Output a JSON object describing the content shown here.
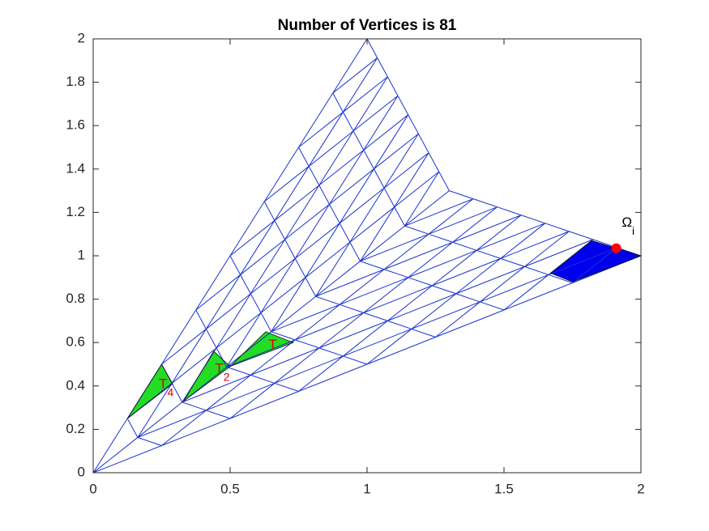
{
  "chart_data": {
    "type": "mesh",
    "title": "Number of Vertices is 81",
    "corners": [
      [
        0,
        0
      ],
      [
        2,
        1
      ],
      [
        1.3,
        1.3
      ],
      [
        1,
        2
      ]
    ],
    "divisions": 8,
    "mesh_color": "#1a33cc",
    "xlim": [
      0,
      2
    ],
    "ylim": [
      0,
      2
    ],
    "xticks": [
      0,
      0.5,
      1,
      1.5,
      2
    ],
    "yticks": [
      0,
      0.2,
      0.4,
      0.6,
      0.8,
      1,
      1.2,
      1.4,
      1.6,
      1.8,
      2
    ],
    "patches": [
      {
        "color": "#22dd22",
        "points": [
          [
            0.125,
            0.25
          ],
          [
            0.25,
            0.5
          ],
          [
            0.29,
            0.41
          ]
        ]
      },
      {
        "color": "#22dd22",
        "points": [
          [
            0.33,
            0.33
          ],
          [
            0.44,
            0.56
          ],
          [
            0.5,
            0.49
          ]
        ]
      },
      {
        "color": "#22dd22",
        "points": [
          [
            0.5,
            0.49
          ],
          [
            0.63,
            0.65
          ],
          [
            0.73,
            0.6
          ]
        ]
      },
      {
        "color": "#0000ee",
        "points": [
          [
            1.67,
            0.92
          ],
          [
            1.82,
            1.07
          ],
          [
            2,
            1
          ],
          [
            1.75,
            0.88
          ]
        ]
      }
    ],
    "point": {
      "x": 1.91,
      "y": 1.035,
      "color": "#ff0000"
    },
    "annotations": [
      {
        "text": "T",
        "sub": "4",
        "x": 0.24,
        "y": 0.405,
        "color": "#dd0000"
      },
      {
        "text": "T",
        "sub": "2",
        "x": 0.445,
        "y": 0.475,
        "color": "#dd0000"
      },
      {
        "text": "T",
        "x": 0.64,
        "y": 0.585,
        "color": "#dd0000"
      },
      {
        "text": "Ω",
        "sub": "i",
        "x": 1.93,
        "y": 1.15,
        "color": "#000000"
      }
    ]
  }
}
